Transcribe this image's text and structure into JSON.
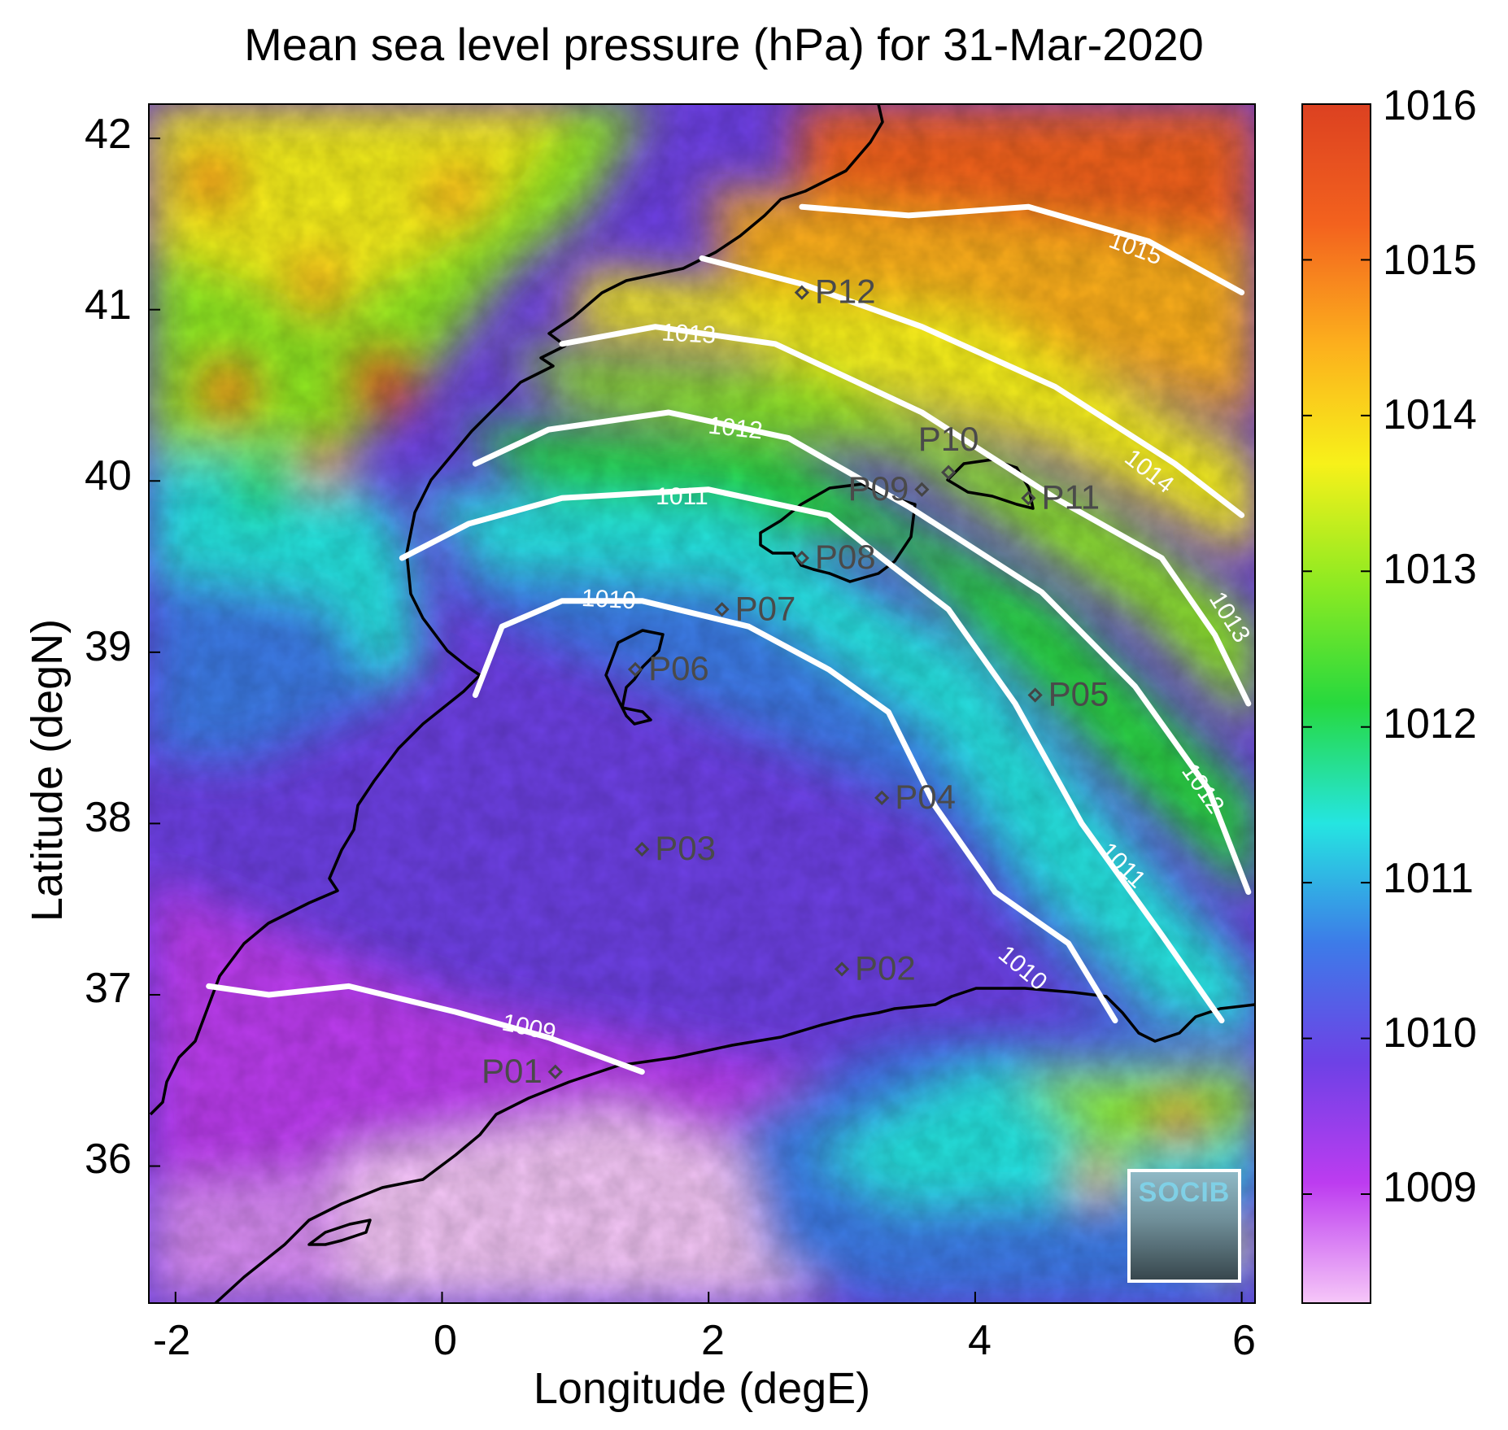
{
  "title": "Mean sea level pressure (hPa) for 31-Mar-2020",
  "xlabel": "Longitude (degE)",
  "ylabel": "Latitude (degN)",
  "x_ticks": [
    "-2",
    "0",
    "2",
    "4",
    "6"
  ],
  "y_ticks": [
    "42",
    "41",
    "40",
    "39",
    "38",
    "37",
    "36"
  ],
  "colorbar_ticks": [
    "1016",
    "1015",
    "1014",
    "1013",
    "1012",
    "1011",
    "1010",
    "1009"
  ],
  "logo_text": "SOCIB",
  "map": {
    "lon_range": [
      -2.2,
      6.1
    ],
    "lat_range": [
      35.2,
      42.2
    ],
    "pressure_range_hPa": [
      1008.3,
      1016.0
    ],
    "colormap": [
      "#f6c7f8",
      "#bd3cf0",
      "#6e41e6",
      "#3d7be8",
      "#25e5e1",
      "#27d93e",
      "#8eea22",
      "#f7f11a",
      "#fcaf1d",
      "#f3621e",
      "#dc4121"
    ],
    "stations": [
      {
        "id": "P01",
        "lon": 0.85,
        "lat": 36.55,
        "label_side": "left"
      },
      {
        "id": "P02",
        "lon": 3.0,
        "lat": 37.15,
        "label_side": "right"
      },
      {
        "id": "P03",
        "lon": 1.5,
        "lat": 37.85,
        "label_side": "right"
      },
      {
        "id": "P04",
        "lon": 3.3,
        "lat": 38.15,
        "label_side": "right"
      },
      {
        "id": "P05",
        "lon": 4.45,
        "lat": 38.75,
        "label_side": "right"
      },
      {
        "id": "P06",
        "lon": 1.45,
        "lat": 38.9,
        "label_side": "right"
      },
      {
        "id": "P07",
        "lon": 2.1,
        "lat": 39.25,
        "label_side": "right"
      },
      {
        "id": "P08",
        "lon": 2.7,
        "lat": 39.55,
        "label_side": "right"
      },
      {
        "id": "P09",
        "lon": 3.6,
        "lat": 39.95,
        "label_side": "left"
      },
      {
        "id": "P10",
        "lon": 3.8,
        "lat": 40.05,
        "label_side": "above"
      },
      {
        "id": "P11",
        "lon": 4.4,
        "lat": 39.9,
        "label_side": "right"
      },
      {
        "id": "P12",
        "lon": 2.7,
        "lat": 41.1,
        "label_side": "right"
      }
    ],
    "contours": [
      {
        "level": "1009",
        "label": "1009",
        "label_lon": 0.65,
        "label_lat": 36.8,
        "label_angle": 12,
        "points": [
          [
            -1.75,
            37.05
          ],
          [
            -1.3,
            37.0
          ],
          [
            -0.7,
            37.05
          ],
          [
            0.1,
            36.9
          ],
          [
            0.8,
            36.75
          ],
          [
            1.5,
            36.55
          ]
        ]
      },
      {
        "level": "1010",
        "label": "1010",
        "label_lon": 1.25,
        "label_lat": 39.3,
        "label_angle": 3,
        "label2_lon": 4.35,
        "label2_lat": 37.15,
        "label2_angle": 40,
        "points": [
          [
            0.25,
            38.75
          ],
          [
            0.45,
            39.15
          ],
          [
            0.9,
            39.3
          ],
          [
            1.5,
            39.3
          ],
          [
            2.3,
            39.15
          ],
          [
            2.9,
            38.9
          ],
          [
            3.35,
            38.65
          ],
          [
            3.7,
            38.1
          ],
          [
            4.15,
            37.6
          ],
          [
            4.7,
            37.3
          ],
          [
            5.05,
            36.85
          ]
        ]
      },
      {
        "level": "1011",
        "label": "1011",
        "label_lon": 1.8,
        "label_lat": 39.9,
        "label_angle": 0,
        "label2_lon": 5.1,
        "label2_lat": 37.75,
        "label2_angle": 45,
        "points": [
          [
            -0.3,
            39.55
          ],
          [
            0.2,
            39.75
          ],
          [
            0.9,
            39.9
          ],
          [
            2.0,
            39.95
          ],
          [
            2.9,
            39.8
          ],
          [
            3.3,
            39.55
          ],
          [
            3.8,
            39.25
          ],
          [
            4.3,
            38.7
          ],
          [
            4.8,
            38.0
          ],
          [
            5.4,
            37.35
          ],
          [
            5.85,
            36.85
          ]
        ]
      },
      {
        "level": "1012",
        "label": "1012",
        "label_lon": 2.2,
        "label_lat": 40.3,
        "label_angle": 6,
        "label2_lon": 5.7,
        "label2_lat": 38.2,
        "label2_angle": 55,
        "points": [
          [
            0.25,
            40.1
          ],
          [
            0.8,
            40.3
          ],
          [
            1.7,
            40.4
          ],
          [
            2.6,
            40.25
          ],
          [
            3.5,
            39.85
          ],
          [
            4.5,
            39.35
          ],
          [
            5.2,
            38.8
          ],
          [
            5.75,
            38.2
          ],
          [
            6.05,
            37.6
          ]
        ]
      },
      {
        "level": "1013",
        "label": "1013",
        "label_lon": 1.85,
        "label_lat": 40.85,
        "label_angle": 3,
        "label2_lon": 5.9,
        "label2_lat": 39.2,
        "label2_angle": 58,
        "points": [
          [
            0.9,
            40.8
          ],
          [
            1.6,
            40.9
          ],
          [
            2.5,
            40.8
          ],
          [
            3.6,
            40.4
          ],
          [
            4.6,
            39.9
          ],
          [
            5.4,
            39.55
          ],
          [
            5.8,
            39.1
          ],
          [
            6.05,
            38.7
          ]
        ]
      },
      {
        "level": "1014",
        "label": "1014",
        "label_lon": 5.3,
        "label_lat": 40.05,
        "label_angle": 38,
        "points": [
          [
            1.95,
            41.3
          ],
          [
            2.7,
            41.15
          ],
          [
            3.6,
            40.9
          ],
          [
            4.6,
            40.55
          ],
          [
            5.5,
            40.1
          ],
          [
            6.0,
            39.8
          ]
        ]
      },
      {
        "level": "1015",
        "label": "1015",
        "label_lon": 5.2,
        "label_lat": 41.35,
        "label_angle": 20,
        "points": [
          [
            2.7,
            41.6
          ],
          [
            3.5,
            41.55
          ],
          [
            4.4,
            41.6
          ],
          [
            5.3,
            41.4
          ],
          [
            6.0,
            41.1
          ]
        ]
      }
    ]
  }
}
